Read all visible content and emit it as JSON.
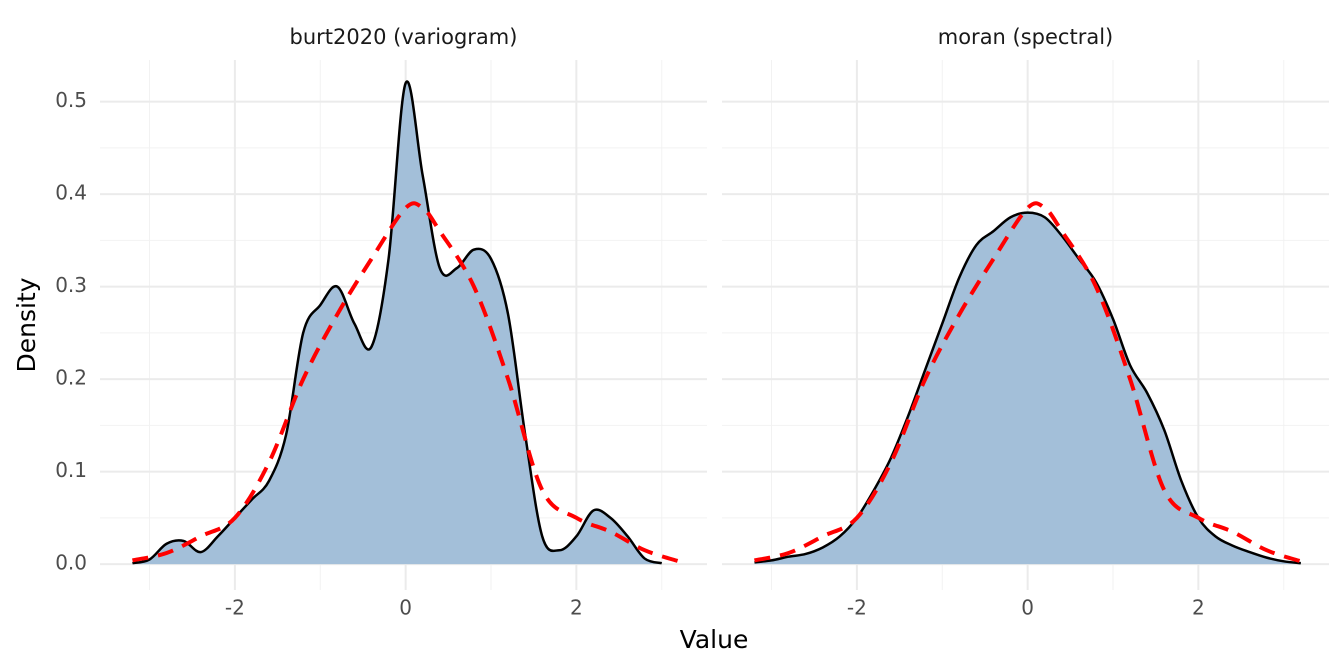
{
  "chart_data": [
    {
      "type": "density",
      "title": "burt2020 (variogram)",
      "xlabel": "Value",
      "ylabel": "Density",
      "xlim": [
        -3.58,
        3.53
      ],
      "ylim": [
        -0.028,
        0.545
      ],
      "xticks": [
        -2,
        0,
        2
      ],
      "yticks": [
        {
          "value": 0,
          "label": "0.0"
        },
        0.1,
        0.2,
        0.3,
        0.4,
        0.5
      ],
      "xminor": [
        -3,
        -1,
        1,
        3
      ],
      "yminor": [
        0.05,
        0.15,
        0.25,
        0.35,
        0.45
      ],
      "grid": true,
      "show_yticklabels": true,
      "series": [
        {
          "color": "#000000",
          "fill": "#a3bfd9",
          "style": "solid",
          "x": [
            -3.2,
            -3.0,
            -2.8,
            -2.6,
            -2.4,
            -2.2,
            -2.0,
            -1.8,
            -1.6,
            -1.4,
            -1.2,
            -1.0,
            -0.8,
            -0.6,
            -0.4,
            -0.2,
            0.0,
            0.2,
            0.4,
            0.6,
            0.8,
            1.0,
            1.2,
            1.4,
            1.6,
            1.8,
            2.0,
            2.2,
            2.4,
            2.6,
            2.8,
            3.0
          ],
          "values": [
            0.001,
            0.005,
            0.022,
            0.025,
            0.013,
            0.03,
            0.05,
            0.07,
            0.09,
            0.14,
            0.25,
            0.28,
            0.3,
            0.26,
            0.235,
            0.33,
            0.52,
            0.42,
            0.32,
            0.32,
            0.34,
            0.33,
            0.27,
            0.14,
            0.03,
            0.015,
            0.03,
            0.058,
            0.05,
            0.03,
            0.006,
            0.001
          ]
        },
        {
          "color": "#ff0000",
          "style": "dashed",
          "x": [
            -3.2,
            -2.8,
            -2.4,
            -2.0,
            -1.6,
            -1.2,
            -0.8,
            -0.4,
            0.0,
            0.2,
            0.4,
            0.8,
            1.2,
            1.6,
            2.0,
            2.4,
            2.8,
            3.2
          ],
          "values": [
            0.004,
            0.012,
            0.03,
            0.05,
            0.11,
            0.2,
            0.27,
            0.33,
            0.385,
            0.385,
            0.36,
            0.3,
            0.2,
            0.08,
            0.05,
            0.035,
            0.015,
            0.003
          ]
        }
      ]
    },
    {
      "type": "density",
      "title": "moran (spectral)",
      "xlim": [
        -3.58,
        3.53
      ],
      "ylim": [
        -0.028,
        0.545
      ],
      "xticks": [
        -2,
        0,
        2
      ],
      "yticks": [
        0,
        0.1,
        0.2,
        0.3,
        0.4,
        0.5
      ],
      "xminor": [
        -3,
        -1,
        1,
        3
      ],
      "yminor": [
        0.05,
        0.15,
        0.25,
        0.35,
        0.45
      ],
      "grid": true,
      "show_yticklabels": false,
      "series": [
        {
          "color": "#000000",
          "fill": "#a3bfd9",
          "style": "solid",
          "x": [
            -3.2,
            -3.0,
            -2.8,
            -2.6,
            -2.4,
            -2.2,
            -2.0,
            -1.8,
            -1.6,
            -1.4,
            -1.2,
            -1.0,
            -0.8,
            -0.6,
            -0.4,
            -0.2,
            0.0,
            0.2,
            0.4,
            0.6,
            0.8,
            1.0,
            1.2,
            1.4,
            1.6,
            1.8,
            2.0,
            2.2,
            2.4,
            2.6,
            2.8,
            3.0,
            3.2
          ],
          "values": [
            0.002,
            0.004,
            0.008,
            0.011,
            0.018,
            0.03,
            0.05,
            0.08,
            0.115,
            0.16,
            0.21,
            0.26,
            0.31,
            0.345,
            0.36,
            0.375,
            0.38,
            0.375,
            0.355,
            0.33,
            0.305,
            0.265,
            0.215,
            0.185,
            0.145,
            0.09,
            0.05,
            0.03,
            0.02,
            0.013,
            0.007,
            0.003,
            0.001
          ]
        },
        {
          "color": "#ff0000",
          "style": "dashed",
          "x": [
            -3.2,
            -2.8,
            -2.4,
            -2.0,
            -1.6,
            -1.2,
            -0.8,
            -0.4,
            0.0,
            0.2,
            0.4,
            0.8,
            1.2,
            1.6,
            2.0,
            2.4,
            2.8,
            3.2
          ],
          "values": [
            0.004,
            0.012,
            0.03,
            0.05,
            0.11,
            0.2,
            0.27,
            0.33,
            0.385,
            0.385,
            0.36,
            0.3,
            0.2,
            0.08,
            0.05,
            0.035,
            0.015,
            0.003
          ]
        }
      ]
    }
  ]
}
